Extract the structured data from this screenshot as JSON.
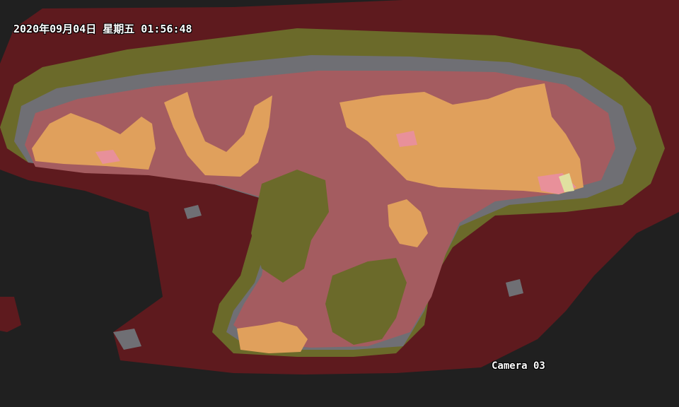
{
  "overlay": {
    "timestamp": "2020年09月04日 星期五 01:56:48",
    "camera_label": "Camera 03"
  },
  "palette": {
    "background": "#202020",
    "cold": "#5e1a1e",
    "cool": "#6b6a2a",
    "mid": "#6f6f74",
    "warm": "#a45c60",
    "hot": "#e0a05c",
    "hotter": "#e8909a",
    "hottest": "#e0e0a0"
  }
}
